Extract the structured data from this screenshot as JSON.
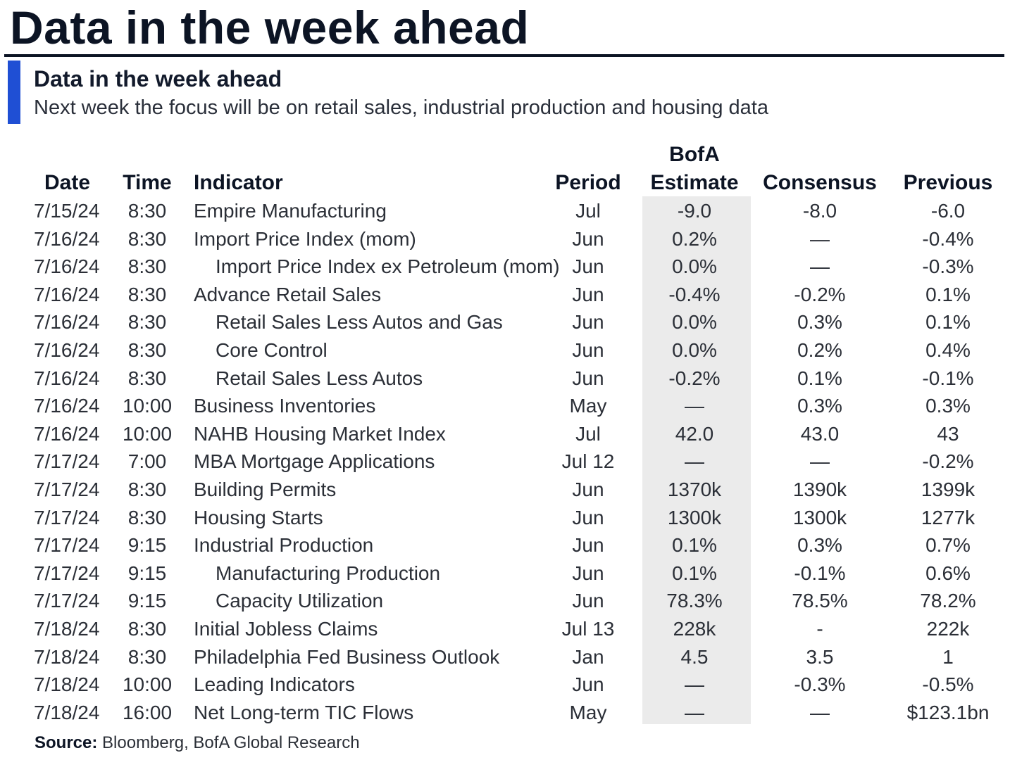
{
  "page_title": "Data in the week ahead",
  "subtitle": "Data in the week ahead",
  "description": "Next week the focus will be on retail sales, industrial production and housing data",
  "columns": {
    "date": "Date",
    "time": "Time",
    "indicator": "Indicator",
    "period": "Period",
    "estimate_line1": "BofA",
    "estimate_line2": "Estimate",
    "consensus": "Consensus",
    "previous": "Previous"
  },
  "rows": [
    {
      "date": "7/15/24",
      "time": "8:30",
      "indicator": "Empire Manufacturing",
      "sub": false,
      "period": "Jul",
      "estimate": "-9.0",
      "consensus": "-8.0",
      "previous": "-6.0"
    },
    {
      "date": "7/16/24",
      "time": "8:30",
      "indicator": "Import Price Index (mom)",
      "sub": false,
      "period": "Jun",
      "estimate": "0.2%",
      "consensus": "—",
      "previous": "-0.4%"
    },
    {
      "date": "7/16/24",
      "time": "8:30",
      "indicator": "Import Price Index ex Petroleum (mom)",
      "sub": true,
      "period": "Jun",
      "estimate": "0.0%",
      "consensus": "—",
      "previous": "-0.3%"
    },
    {
      "date": "7/16/24",
      "time": "8:30",
      "indicator": "Advance Retail Sales",
      "sub": false,
      "period": "Jun",
      "estimate": "-0.4%",
      "consensus": "-0.2%",
      "previous": "0.1%"
    },
    {
      "date": "7/16/24",
      "time": "8:30",
      "indicator": "Retail Sales Less Autos and Gas",
      "sub": true,
      "period": "Jun",
      "estimate": "0.0%",
      "consensus": "0.3%",
      "previous": "0.1%"
    },
    {
      "date": "7/16/24",
      "time": "8:30",
      "indicator": "Core Control",
      "sub": true,
      "period": "Jun",
      "estimate": "0.0%",
      "consensus": "0.2%",
      "previous": "0.4%"
    },
    {
      "date": "7/16/24",
      "time": "8:30",
      "indicator": "Retail Sales Less Autos",
      "sub": true,
      "period": "Jun",
      "estimate": "-0.2%",
      "consensus": "0.1%",
      "previous": "-0.1%"
    },
    {
      "date": "7/16/24",
      "time": "10:00",
      "indicator": "Business Inventories",
      "sub": false,
      "period": "May",
      "estimate": "—",
      "consensus": "0.3%",
      "previous": "0.3%"
    },
    {
      "date": "7/16/24",
      "time": "10:00",
      "indicator": "NAHB Housing Market Index",
      "sub": false,
      "period": "Jul",
      "estimate": "42.0",
      "consensus": "43.0",
      "previous": "43"
    },
    {
      "date": "7/17/24",
      "time": "7:00",
      "indicator": "MBA Mortgage Applications",
      "sub": false,
      "period": "Jul 12",
      "estimate": "—",
      "consensus": "—",
      "previous": "-0.2%"
    },
    {
      "date": "7/17/24",
      "time": "8:30",
      "indicator": "Building Permits",
      "sub": false,
      "period": "Jun",
      "estimate": "1370k",
      "consensus": "1390k",
      "previous": "1399k"
    },
    {
      "date": "7/17/24",
      "time": "8:30",
      "indicator": "Housing Starts",
      "sub": false,
      "period": "Jun",
      "estimate": "1300k",
      "consensus": "1300k",
      "previous": "1277k"
    },
    {
      "date": "7/17/24",
      "time": "9:15",
      "indicator": "Industrial Production",
      "sub": false,
      "period": "Jun",
      "estimate": "0.1%",
      "consensus": "0.3%",
      "previous": "0.7%"
    },
    {
      "date": "7/17/24",
      "time": "9:15",
      "indicator": "Manufacturing Production",
      "sub": true,
      "period": "Jun",
      "estimate": "0.1%",
      "consensus": "-0.1%",
      "previous": "0.6%"
    },
    {
      "date": "7/17/24",
      "time": "9:15",
      "indicator": "Capacity Utilization",
      "sub": true,
      "period": "Jun",
      "estimate": "78.3%",
      "consensus": "78.5%",
      "previous": "78.2%"
    },
    {
      "date": "7/18/24",
      "time": "8:30",
      "indicator": "Initial Jobless Claims",
      "sub": false,
      "period": "Jul 13",
      "estimate": "228k",
      "consensus": "-",
      "previous": "222k"
    },
    {
      "date": "7/18/24",
      "time": "8:30",
      "indicator": "Philadelphia Fed Business Outlook",
      "sub": false,
      "period": "Jan",
      "estimate": "4.5",
      "consensus": "3.5",
      "previous": "1"
    },
    {
      "date": "7/18/24",
      "time": "10:00",
      "indicator": "Leading Indicators",
      "sub": false,
      "period": "Jun",
      "estimate": "—",
      "consensus": "-0.3%",
      "previous": "-0.5%"
    },
    {
      "date": "7/18/24",
      "time": "16:00",
      "indicator": "Net Long-term TIC Flows",
      "sub": false,
      "period": "May",
      "estimate": "—",
      "consensus": "—",
      "previous": "$123.1bn"
    }
  ],
  "source": {
    "label": "Source:",
    "text": " Bloomberg, BofA Global Research"
  },
  "colors": {
    "accent": "#1f4fd4",
    "title": "#0c1424",
    "estimate_shade": "#ebebeb"
  }
}
